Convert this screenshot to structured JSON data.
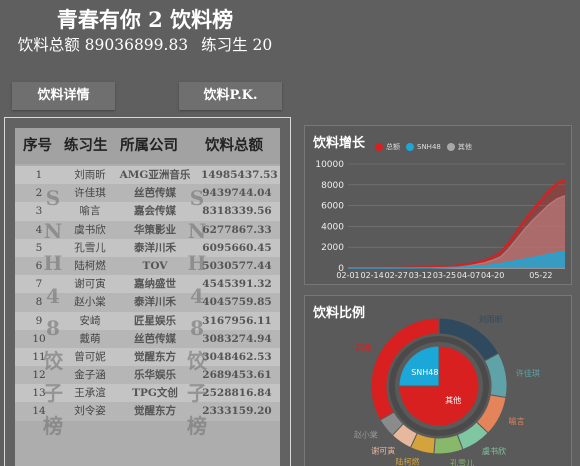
{
  "header": {
    "title": "青春有你 2 饮料榜",
    "total_label": "饮料总额 89036899.83",
    "trainees_label": "练习生 20"
  },
  "tabs": {
    "detail": "饮料详情",
    "pk": "饮料P.K."
  },
  "table": {
    "columns": [
      "序号",
      "练习生",
      "所属公司",
      "饮料总额"
    ],
    "rows": [
      [
        "1",
        "刘雨昕",
        "AMG亚洲音乐",
        "14985437.53"
      ],
      [
        "2",
        "许佳琪",
        "丝芭传媒",
        "9439744.04"
      ],
      [
        "3",
        "喻言",
        "嘉会传媒",
        "8318339.56"
      ],
      [
        "4",
        "虞书欣",
        "华策影业",
        "6277867.33"
      ],
      [
        "5",
        "孔雪儿",
        "泰洋川禾",
        "6095660.45"
      ],
      [
        "6",
        "陆柯燃",
        "TOV",
        "5030577.44"
      ],
      [
        "7",
        "谢可寅",
        "嘉纳盛世",
        "4545391.32"
      ],
      [
        "8",
        "赵小棠",
        "泰洋川禾",
        "4045759.85"
      ],
      [
        "9",
        "安崎",
        "匠星娱乐",
        "3167956.11"
      ],
      [
        "10",
        "戴萌",
        "丝芭传媒",
        "3083274.94"
      ],
      [
        "11",
        "曾可妮",
        "觉醒东方",
        "3048462.53"
      ],
      [
        "12",
        "金子涵",
        "乐华娱乐",
        "2689453.61"
      ],
      [
        "13",
        "王承渲",
        "TPG文创",
        "2528816.84"
      ],
      [
        "14",
        "刘令姿",
        "觉醒东方",
        "2333159.20"
      ]
    ],
    "watermark_chars": [
      "S",
      "N",
      "H",
      "4",
      "8",
      "饺",
      "子",
      "榜"
    ]
  },
  "growth": {
    "title": "饮料增长",
    "chart_data": {
      "type": "area",
      "categories": [
        "02-01",
        "02-14",
        "02-27",
        "03-12",
        "03-25",
        "04-07",
        "04-20",
        "05-22"
      ],
      "x": [
        "02-01",
        "02-05",
        "02-09",
        "02-14",
        "02-18",
        "02-22",
        "02-27",
        "03-03",
        "03-07",
        "03-12",
        "03-16",
        "03-20",
        "03-25",
        "03-29",
        "04-02",
        "04-07",
        "04-11",
        "04-15",
        "04-20",
        "04-24",
        "04-28",
        "05-02",
        "05-06",
        "05-10",
        "05-14",
        "05-18",
        "05-22",
        "05-26"
      ],
      "ylim": [
        0,
        10000
      ],
      "yticks": [
        0,
        2000,
        4000,
        6000,
        8000,
        10000
      ],
      "grid": true,
      "legend": "top",
      "series": [
        {
          "name": "总额",
          "color": "#d7201f",
          "values": [
            0,
            0,
            0,
            0,
            0,
            10,
            20,
            30,
            50,
            60,
            80,
            110,
            150,
            200,
            280,
            380,
            520,
            700,
            1050,
            1500,
            2400,
            3500,
            4600,
            5600,
            6500,
            7400,
            8100,
            8500
          ]
        },
        {
          "name": "SNH48",
          "color": "#1ba7d8",
          "values": [
            0,
            0,
            0,
            0,
            0,
            0,
            0,
            10,
            10,
            20,
            20,
            30,
            40,
            60,
            80,
            110,
            150,
            200,
            300,
            420,
            560,
            700,
            850,
            1000,
            1150,
            1300,
            1450,
            1550
          ]
        },
        {
          "name": "其他",
          "color": "#a8a8a8",
          "values": [
            0,
            0,
            0,
            0,
            0,
            10,
            20,
            20,
            40,
            40,
            60,
            80,
            110,
            140,
            200,
            270,
            370,
            500,
            750,
            1080,
            1840,
            2800,
            3750,
            4600,
            5350,
            6100,
            6650,
            6950
          ]
        }
      ]
    }
  },
  "ratio": {
    "title": "饮料比例",
    "chart_data": {
      "type": "pie",
      "inner": [
        {
          "name": "SNH48",
          "value": 25,
          "color": "#1ba7d8"
        },
        {
          "name": "其他",
          "value": 75,
          "color": "#d7201f"
        }
      ],
      "outer": [
        {
          "name": "刘雨昕",
          "value": 14985437.53,
          "color": "#2f4a5f"
        },
        {
          "name": "许佳琪",
          "value": 9439744.04,
          "color": "#5fa3a8"
        },
        {
          "name": "喻言",
          "value": 8318339.56,
          "color": "#e3845a"
        },
        {
          "name": "虞书欣",
          "value": 6277867.33,
          "color": "#7fc7a2"
        },
        {
          "name": "孔雪儿",
          "value": 6095660.45,
          "color": "#88b86a"
        },
        {
          "name": "陆柯燃",
          "value": 5030577.44,
          "color": "#d4a33b"
        },
        {
          "name": "谢可寅",
          "value": 4545391.32,
          "color": "#e6b89e"
        },
        {
          "name": "赵小棠",
          "value": 4045759.85,
          "color": "#8b8b8b"
        },
        {
          "name": "其他",
          "value": 29397000,
          "color": "#d7201f"
        }
      ],
      "labels_inner": [
        "SNH48",
        "其他"
      ],
      "labels_outer": [
        "刘雨昕",
        "许佳琪",
        "喻言",
        "虞书欣",
        "孔雪儿",
        "陆柯燃",
        "谢可寅",
        "赵小棠",
        "其他"
      ]
    }
  }
}
